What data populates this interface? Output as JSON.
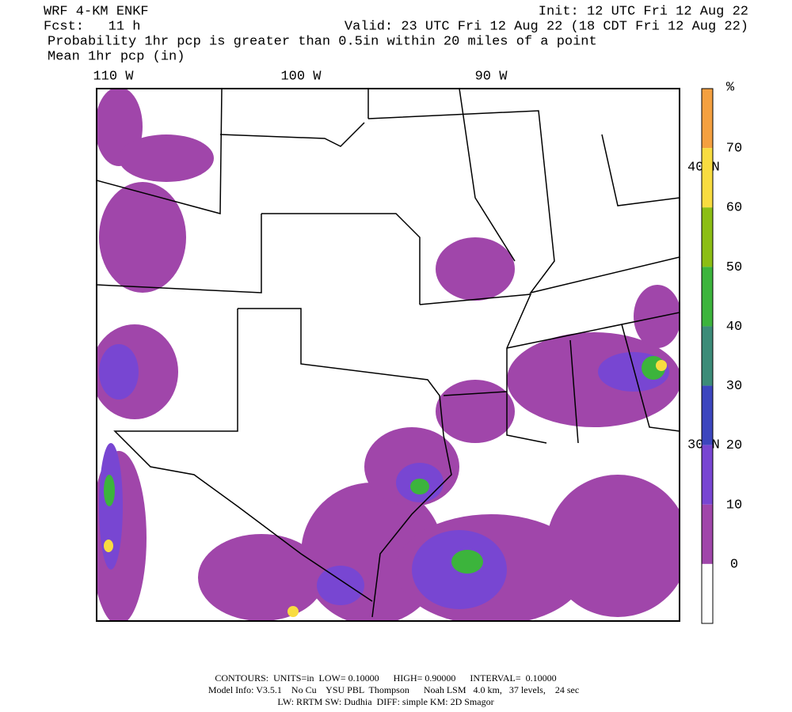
{
  "header": {
    "model": "WRF 4-KM ENKF",
    "init": "Init: 12 UTC Fri 12 Aug 22",
    "fcst": "Fcst:   11 h",
    "valid": "Valid: 23 UTC Fri 12 Aug 22 (18 CDT Fri 12 Aug 22)",
    "field1": "Probability 1hr pcp is greater than 0.5in within 20 miles of a point",
    "field2": "Mean 1hr pcp (in)"
  },
  "map": {
    "longitudes": [
      "110 W",
      "100 W",
      "90 W"
    ],
    "latitudes": [
      "40 N",
      "30 N"
    ]
  },
  "colorbar": {
    "unit": "%",
    "ticks": [
      "70",
      "60",
      "50",
      "40",
      "30",
      "20",
      "10",
      "0"
    ],
    "colors": [
      "#f4a040",
      "#f8dc40",
      "#8cbe14",
      "#3cb43c",
      "#3c8c78",
      "#3c46be",
      "#7846d2",
      "#a046aa",
      "#ffffff"
    ]
  },
  "footer": {
    "contours": "CONTOURS:  UNITS=in  LOW= 0.10000      HIGH= 0.90000      INTERVAL=  0.10000",
    "model_info": "Model Info: V3.5.1    No Cu    YSU PBL  Thompson      Noah LSM   4.0 km,   37 levels,    24 sec",
    "physics": "LW: RRTM SW: Dudhia  DIFF: simple KM: 2D Smagor"
  }
}
